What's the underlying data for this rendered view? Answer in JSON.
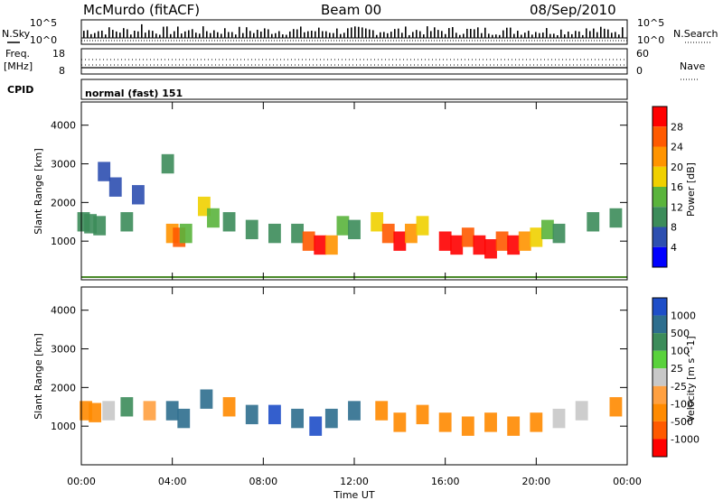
{
  "header": {
    "station": "McMurdo (fitACF)",
    "beam": "Beam 00",
    "date": "08/Sep/2010"
  },
  "top_panels": {
    "nsky_label": "N.Sky",
    "nsky_ticks": [
      "10^5",
      "10^0"
    ],
    "nsearch_label": "N.Search",
    "nsearch_ticks": [
      "10^5",
      "10^0"
    ],
    "freq_label_1": "Freq.",
    "freq_label_2": "[MHz]",
    "freq_ticks": [
      "18",
      "8"
    ],
    "nave_label": "Nave",
    "nave_ticks": [
      "60",
      "0"
    ],
    "cpid_label": "CPID",
    "cpid_value": "normal (fast) 151"
  },
  "colors": {
    "power_scale": [
      "#0000ff",
      "#2d4fb0",
      "#3c8c5a",
      "#5ab43c",
      "#f0d000",
      "#ff9400",
      "#ff5a00",
      "#ff0000"
    ],
    "velocity_scale": [
      "#1e4ec8",
      "#2e6e8e",
      "#3c8c5a",
      "#5ad23c",
      "#c8c8c8",
      "#ffa040",
      "#ff8a00",
      "#ff5a00",
      "#ff0000"
    ]
  },
  "chart_data": [
    {
      "type": "heatmap",
      "name": "power",
      "ylabel": "Slant Range [km]",
      "xlabel": "",
      "x_ticks": [
        "00:00",
        "04:00",
        "08:00",
        "12:00",
        "16:00",
        "20:00",
        "00:00"
      ],
      "y_ticks": [
        "1000",
        "2000",
        "3000",
        "4000"
      ],
      "ylim": [
        0,
        4600
      ],
      "xlim_hours": [
        0,
        24
      ],
      "colorbar_label": "Power [dB]",
      "colorbar_ticks": [
        "4",
        "8",
        "12",
        "16",
        "20",
        "24",
        "28"
      ],
      "cells": [
        {
          "t": 0.1,
          "r": 1500,
          "v": 8
        },
        {
          "t": 0.4,
          "r": 1450,
          "v": 10
        },
        {
          "t": 0.8,
          "r": 1400,
          "v": 8
        },
        {
          "t": 1.0,
          "r": 2800,
          "v": 6
        },
        {
          "t": 1.5,
          "r": 2400,
          "v": 6
        },
        {
          "t": 2.0,
          "r": 1500,
          "v": 9
        },
        {
          "t": 2.5,
          "r": 2200,
          "v": 5
        },
        {
          "t": 3.8,
          "r": 3000,
          "v": 8
        },
        {
          "t": 4.0,
          "r": 1200,
          "v": 22
        },
        {
          "t": 4.3,
          "r": 1100,
          "v": 24
        },
        {
          "t": 4.6,
          "r": 1200,
          "v": 12
        },
        {
          "t": 5.4,
          "r": 1900,
          "v": 18
        },
        {
          "t": 5.8,
          "r": 1600,
          "v": 14
        },
        {
          "t": 6.5,
          "r": 1500,
          "v": 8
        },
        {
          "t": 7.5,
          "r": 1300,
          "v": 8
        },
        {
          "t": 8.5,
          "r": 1200,
          "v": 9
        },
        {
          "t": 9.5,
          "r": 1200,
          "v": 10
        },
        {
          "t": 10.0,
          "r": 1000,
          "v": 26
        },
        {
          "t": 10.5,
          "r": 900,
          "v": 28
        },
        {
          "t": 11.0,
          "r": 900,
          "v": 20
        },
        {
          "t": 11.5,
          "r": 1400,
          "v": 14
        },
        {
          "t": 12.0,
          "r": 1300,
          "v": 8
        },
        {
          "t": 13.0,
          "r": 1500,
          "v": 18
        },
        {
          "t": 13.5,
          "r": 1200,
          "v": 26
        },
        {
          "t": 14.0,
          "r": 1000,
          "v": 28
        },
        {
          "t": 14.5,
          "r": 1200,
          "v": 22
        },
        {
          "t": 15.0,
          "r": 1400,
          "v": 16
        },
        {
          "t": 16.0,
          "r": 1000,
          "v": 28
        },
        {
          "t": 16.5,
          "r": 900,
          "v": 28
        },
        {
          "t": 17.0,
          "r": 1100,
          "v": 24
        },
        {
          "t": 17.5,
          "r": 900,
          "v": 28
        },
        {
          "t": 18.0,
          "r": 800,
          "v": 28
        },
        {
          "t": 18.5,
          "r": 1000,
          "v": 26
        },
        {
          "t": 19.0,
          "r": 900,
          "v": 28
        },
        {
          "t": 19.5,
          "r": 1000,
          "v": 22
        },
        {
          "t": 20.0,
          "r": 1100,
          "v": 18
        },
        {
          "t": 20.5,
          "r": 1300,
          "v": 12
        },
        {
          "t": 21.0,
          "r": 1200,
          "v": 10
        },
        {
          "t": 22.5,
          "r": 1500,
          "v": 8
        },
        {
          "t": 23.5,
          "r": 1600,
          "v": 8
        }
      ]
    },
    {
      "type": "heatmap",
      "name": "velocity",
      "ylabel": "Slant Range [km]",
      "xlabel": "Time UT",
      "x_ticks": [
        "00:00",
        "04:00",
        "08:00",
        "12:00",
        "16:00",
        "20:00",
        "00:00"
      ],
      "y_ticks": [
        "1000",
        "2000",
        "3000",
        "4000"
      ],
      "ylim": [
        0,
        4600
      ],
      "xlim_hours": [
        0,
        24
      ],
      "colorbar_label": "Velocity [m s^-1]",
      "colorbar_ticks": [
        "1000",
        "500",
        "100",
        "25",
        "-25",
        "-100",
        "-500",
        "-1000"
      ],
      "cells": [
        {
          "t": 0.2,
          "r": 1400,
          "v": -300
        },
        {
          "t": 0.6,
          "r": 1350,
          "v": -200
        },
        {
          "t": 1.2,
          "r": 1400,
          "v": 0
        },
        {
          "t": 2.0,
          "r": 1500,
          "v": 50
        },
        {
          "t": 3.0,
          "r": 1400,
          "v": -50
        },
        {
          "t": 4.0,
          "r": 1400,
          "v": 300
        },
        {
          "t": 4.5,
          "r": 1200,
          "v": 400
        },
        {
          "t": 5.5,
          "r": 1700,
          "v": 150
        },
        {
          "t": 6.5,
          "r": 1500,
          "v": -200
        },
        {
          "t": 7.5,
          "r": 1300,
          "v": 400
        },
        {
          "t": 8.5,
          "r": 1300,
          "v": 600
        },
        {
          "t": 9.5,
          "r": 1200,
          "v": 500
        },
        {
          "t": 10.3,
          "r": 1000,
          "v": 800
        },
        {
          "t": 11.0,
          "r": 1200,
          "v": 200
        },
        {
          "t": 12.0,
          "r": 1400,
          "v": 300
        },
        {
          "t": 13.2,
          "r": 1400,
          "v": -300
        },
        {
          "t": 14.0,
          "r": 1100,
          "v": -300
        },
        {
          "t": 15.0,
          "r": 1300,
          "v": -300
        },
        {
          "t": 16.0,
          "r": 1100,
          "v": -300
        },
        {
          "t": 17.0,
          "r": 1000,
          "v": -300
        },
        {
          "t": 18.0,
          "r": 1100,
          "v": -300
        },
        {
          "t": 19.0,
          "r": 1000,
          "v": -300
        },
        {
          "t": 20.0,
          "r": 1100,
          "v": -300
        },
        {
          "t": 21.0,
          "r": 1200,
          "v": 0
        },
        {
          "t": 22.0,
          "r": 1400,
          "v": 0
        },
        {
          "t": 23.5,
          "r": 1500,
          "v": -200
        }
      ]
    }
  ]
}
